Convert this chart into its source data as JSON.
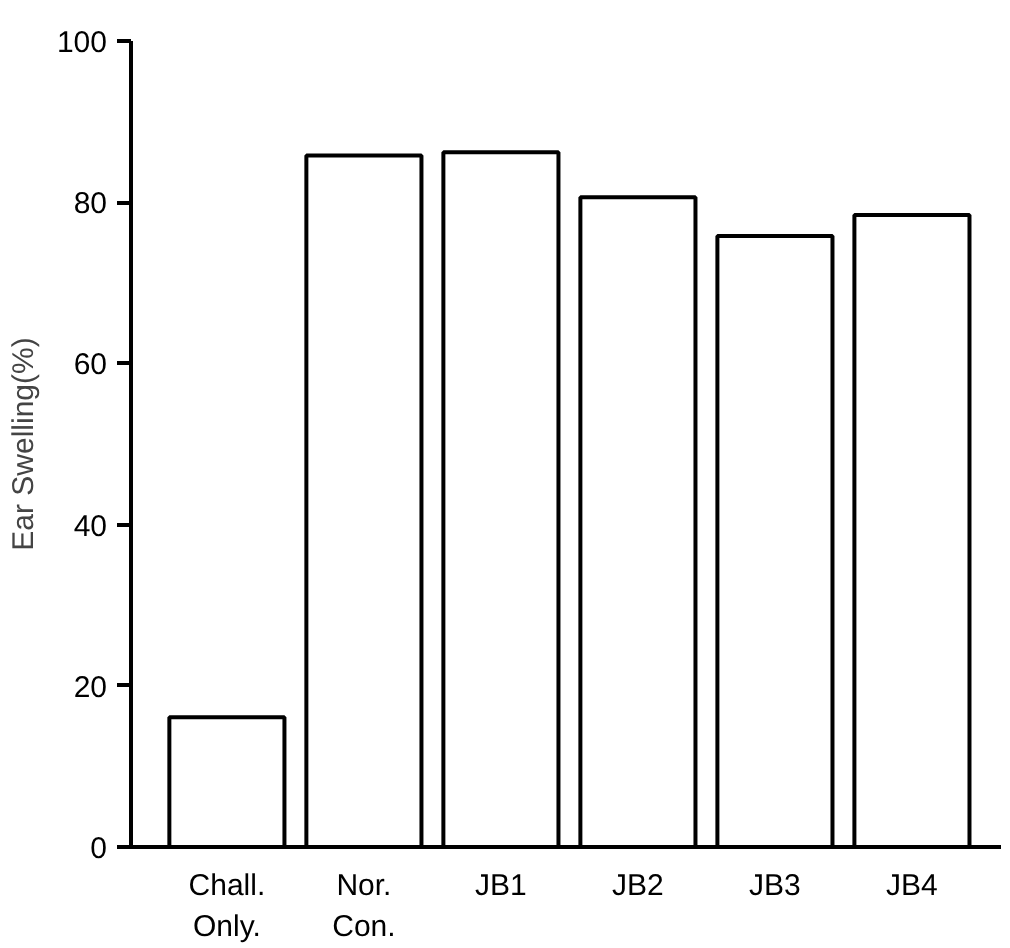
{
  "chart_data": {
    "type": "bar",
    "ylabel": "Ear Swelling(%)",
    "categories": [
      "Chall.\nOnly.",
      "Nor.\nCon.",
      "JB1",
      "JB2",
      "JB3",
      "JB4"
    ],
    "values": [
      16.1,
      85.8,
      86.2,
      80.6,
      75.8,
      78.4
    ],
    "color": "#ffffff",
    "ylim": [
      0,
      100
    ],
    "yticks": [
      0,
      20,
      40,
      60,
      80,
      100
    ],
    "grid": false
  }
}
